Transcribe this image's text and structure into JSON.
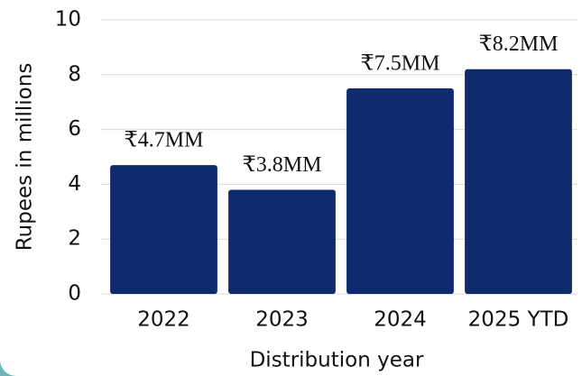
{
  "chart_data": {
    "type": "bar",
    "categories": [
      "2022",
      "2023",
      "2024",
      "2025 YTD"
    ],
    "values": [
      4.7,
      3.8,
      7.5,
      8.2
    ],
    "value_labels": [
      "₹4.7MM",
      "₹3.8MM",
      "₹7.5MM",
      "₹8.2MM"
    ],
    "color": "#0f2b6e",
    "xlabel": "Distribution year",
    "ylabel": "Rupees in millions",
    "ylim": [
      0,
      10
    ],
    "yticks": [
      0,
      2,
      4,
      6,
      8,
      10
    ],
    "grid": true
  }
}
